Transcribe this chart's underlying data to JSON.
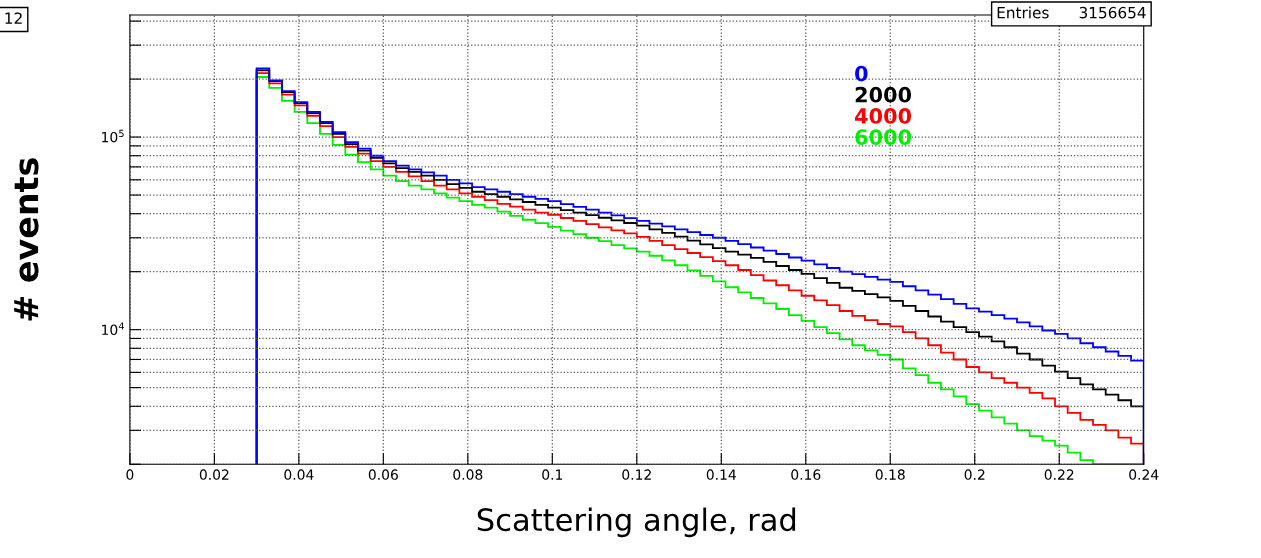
{
  "chart_data": {
    "type": "histogram",
    "xlabel": "Scattering angle, rad",
    "ylabel": "# events",
    "annotations": [
      "12",
      "Entries      3156654"
    ],
    "bins": [
      0.03,
      0.033,
      0.036,
      0.039,
      0.042,
      0.045,
      0.048,
      0.051,
      0.054,
      0.057,
      0.06,
      0.063,
      0.066,
      0.069,
      0.072,
      0.075,
      0.078,
      0.081,
      0.084,
      0.087,
      0.09,
      0.093,
      0.096,
      0.099,
      0.102,
      0.105,
      0.108,
      0.111,
      0.114,
      0.117,
      0.12,
      0.123,
      0.126,
      0.129,
      0.132,
      0.135,
      0.138,
      0.141,
      0.144,
      0.147,
      0.15,
      0.153,
      0.156,
      0.159,
      0.162,
      0.165,
      0.168,
      0.171,
      0.174,
      0.177,
      0.18,
      0.183,
      0.186,
      0.189,
      0.192,
      0.195,
      0.198,
      0.201,
      0.204,
      0.207,
      0.21,
      0.213,
      0.216,
      0.219,
      0.222,
      0.225,
      0.228,
      0.231,
      0.234,
      0.237,
      0.24
    ],
    "series": [
      {
        "name": "6000",
        "color": "#00ee00",
        "values": [
          205000,
          180000,
          154000,
          135000,
          118000,
          104000,
          91000,
          81000,
          74000,
          68000,
          63000,
          59000,
          56000,
          53500,
          51000,
          48500,
          46500,
          44500,
          43000,
          41000,
          39000,
          37200,
          35700,
          34200,
          32700,
          31300,
          30000,
          28800,
          27500,
          26400,
          25400,
          24200,
          22900,
          21600,
          20300,
          19000,
          17800,
          16600,
          15600,
          14600,
          13700,
          12800,
          11900,
          11100,
          10300,
          9600,
          8900,
          8300,
          7800,
          7400,
          7000,
          6300,
          5800,
          5300,
          4900,
          4500,
          4100,
          3800,
          3500,
          3250,
          3000,
          2800,
          2650,
          2500,
          2300,
          2100,
          null,
          null,
          null,
          null
        ]
      },
      {
        "name": "4000",
        "color": "#ff0000",
        "values": [
          215000,
          190000,
          166000,
          146000,
          129000,
          114000,
          100000,
          89000,
          82000,
          75000,
          70000,
          66000,
          62500,
          59000,
          56000,
          53500,
          51000,
          49000,
          47000,
          45000,
          43500,
          42000,
          40500,
          39500,
          38000,
          36700,
          35300,
          34000,
          32800,
          31600,
          30300,
          28900,
          27500,
          26200,
          25000,
          23800,
          22700,
          21600,
          20400,
          19200,
          18000,
          17000,
          16000,
          15000,
          14200,
          13400,
          12500,
          11800,
          11200,
          10700,
          10400,
          9700,
          9000,
          8300,
          7600,
          7000,
          6400,
          6000,
          5600,
          5300,
          5000,
          4700,
          4400,
          4000,
          3700,
          3400,
          3200,
          3000,
          2750,
          2560
        ]
      },
      {
        "name": "2000",
        "color": "#000000",
        "values": [
          222000,
          195000,
          171000,
          150000,
          133000,
          118000,
          104000,
          92000,
          85000,
          78000,
          73000,
          69000,
          66000,
          63000,
          60000,
          57000,
          54500,
          52000,
          50500,
          49000,
          47500,
          46000,
          44500,
          43000,
          41700,
          40500,
          39300,
          38100,
          36900,
          35800,
          34700,
          33200,
          31800,
          30400,
          29000,
          27700,
          26500,
          25400,
          24500,
          23600,
          22500,
          21400,
          20400,
          19500,
          18500,
          17500,
          16500,
          15900,
          15300,
          14700,
          14100,
          13300,
          12500,
          11700,
          11000,
          10300,
          9700,
          9200,
          8700,
          8100,
          7500,
          7000,
          6500,
          6050,
          5600,
          5200,
          4900,
          4600,
          4300,
          4000
        ]
      },
      {
        "name": "0",
        "color": "#0000ff",
        "values": [
          227000,
          197000,
          173000,
          152000,
          135000,
          120000,
          106000,
          94000,
          87000,
          80000,
          75000,
          71000,
          68000,
          65500,
          63000,
          60000,
          57500,
          55000,
          53500,
          52000,
          50500,
          49000,
          47800,
          46500,
          44900,
          43400,
          42000,
          40500,
          39200,
          37900,
          36700,
          35500,
          34400,
          33200,
          32100,
          31000,
          30000,
          28900,
          27800,
          26700,
          25700,
          24700,
          23700,
          22800,
          21800,
          20900,
          20000,
          19400,
          18800,
          18200,
          17700,
          16800,
          16000,
          15200,
          14400,
          13600,
          12900,
          12400,
          11900,
          11400,
          10900,
          10400,
          9900,
          9500,
          9000,
          8500,
          8100,
          7700,
          7300,
          6900
        ]
      }
    ],
    "log": "y",
    "xlim": [
      0,
      0.24
    ],
    "ylim": [
      2000,
      430000
    ],
    "xticks": [
      0,
      0.02,
      0.04,
      0.06,
      0.08,
      0.1,
      0.12,
      0.14,
      0.16,
      0.18,
      0.2,
      0.22,
      0.24
    ],
    "yticks": [
      {
        "value": 2000,
        "label": null
      },
      {
        "value": 3000,
        "label": null
      },
      {
        "value": 4000,
        "label": null
      },
      {
        "value": 5000,
        "label": null
      },
      {
        "value": 6000,
        "label": null
      },
      {
        "value": 7000,
        "label": null
      },
      {
        "value": 8000,
        "label": null
      },
      {
        "value": 9000,
        "label": null
      },
      {
        "value": 10000,
        "label": "10$^{4}$"
      },
      {
        "value": 20000,
        "label": null
      },
      {
        "value": 30000,
        "label": null
      },
      {
        "value": 40000,
        "label": null
      },
      {
        "value": 50000,
        "label": null
      },
      {
        "value": 60000,
        "label": null
      },
      {
        "value": 70000,
        "label": null
      },
      {
        "value": 80000,
        "label": null
      },
      {
        "value": 90000,
        "label": null
      },
      {
        "value": 100000,
        "label": "10$^{5}$"
      },
      {
        "value": 200000,
        "label": null
      },
      {
        "value": 300000,
        "label": null
      },
      {
        "value": 400000,
        "label": null
      }
    ],
    "grid": true,
    "legend": "top right"
  }
}
